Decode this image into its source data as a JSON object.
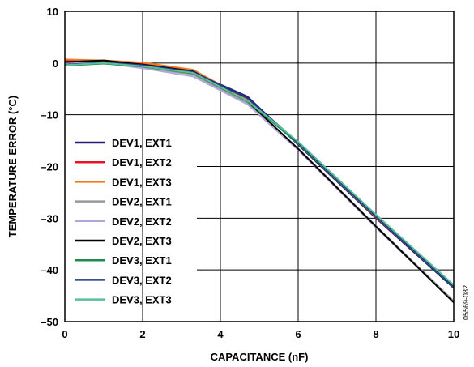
{
  "chart_data": {
    "type": "line",
    "title": "",
    "xlabel": "CAPACITANCE (nF)",
    "ylabel": "TEMPERATURE ERROR (°C)",
    "xlim": [
      0,
      10
    ],
    "ylim": [
      -50,
      10
    ],
    "x_ticks": [
      "0",
      "2",
      "4",
      "6",
      "8",
      "10"
    ],
    "y_ticks": [
      "10",
      "0",
      "–10",
      "–20",
      "–30",
      "–40",
      "–50"
    ],
    "grid": true,
    "legend_position": "left",
    "figure_id": "05569-082",
    "series": [
      {
        "name": "DEV1, EXT1",
        "color": "#2a1a78",
        "points": [
          [
            0,
            0.2
          ],
          [
            1,
            0.3
          ],
          [
            2,
            -0.2
          ],
          [
            3.3,
            -1.8
          ],
          [
            4.7,
            -6.5
          ],
          [
            6,
            -15.8
          ],
          [
            8,
            -30
          ],
          [
            10,
            -43.5
          ]
        ]
      },
      {
        "name": "DEV1, EXT2",
        "color": "#e8102a",
        "points": [
          [
            0,
            0.5
          ],
          [
            1,
            0.4
          ],
          [
            2,
            0.0
          ],
          [
            3.3,
            -1.4
          ],
          [
            4.7,
            -7.0
          ],
          [
            6,
            -15.5
          ],
          [
            8,
            -29.8
          ],
          [
            10,
            -43.2
          ]
        ]
      },
      {
        "name": "DEV1, EXT3",
        "color": "#f47a20",
        "points": [
          [
            0,
            0.7
          ],
          [
            1,
            0.5
          ],
          [
            2,
            0.1
          ],
          [
            3.3,
            -1.3
          ],
          [
            4.7,
            -7.2
          ],
          [
            6,
            -15.6
          ],
          [
            8,
            -29.7
          ],
          [
            10,
            -43.0
          ]
        ]
      },
      {
        "name": "DEV2, EXT1",
        "color": "#9a9a9a",
        "points": [
          [
            0,
            0.1
          ],
          [
            1,
            0.1
          ],
          [
            2,
            -0.8
          ],
          [
            3.3,
            -2.2
          ],
          [
            4.7,
            -7.8
          ],
          [
            6,
            -16.5
          ],
          [
            8,
            -31.5
          ],
          [
            10,
            -46.0
          ]
        ]
      },
      {
        "name": "DEV2, EXT2",
        "color": "#b3a6dc",
        "points": [
          [
            0,
            0.0
          ],
          [
            1,
            0.0
          ],
          [
            2,
            -1.0
          ],
          [
            3.3,
            -2.6
          ],
          [
            4.7,
            -8.0
          ],
          [
            6,
            -16.8
          ],
          [
            8,
            -31.8
          ],
          [
            10,
            -46.2
          ]
        ]
      },
      {
        "name": "DEV2, EXT3",
        "color": "#000000",
        "points": [
          [
            0,
            0.2
          ],
          [
            1,
            0.5
          ],
          [
            2,
            -0.3
          ],
          [
            3.3,
            -1.6
          ],
          [
            4.7,
            -7.4
          ],
          [
            6,
            -16.6
          ],
          [
            8,
            -31.6
          ],
          [
            10,
            -46.3
          ]
        ]
      },
      {
        "name": "DEV3, EXT1",
        "color": "#1f8a4c",
        "points": [
          [
            0,
            -0.5
          ],
          [
            1,
            -0.1
          ],
          [
            2,
            -0.7
          ],
          [
            3.3,
            -2.0
          ],
          [
            4.7,
            -7.4
          ],
          [
            6,
            -15.6
          ],
          [
            8,
            -29.7
          ],
          [
            10,
            -43.3
          ]
        ]
      },
      {
        "name": "DEV3, EXT2",
        "color": "#1c3a8a",
        "points": [
          [
            0,
            -0.3
          ],
          [
            1,
            0.1
          ],
          [
            2,
            -0.4
          ],
          [
            3.3,
            -1.7
          ],
          [
            4.7,
            -6.8
          ],
          [
            6,
            -15.4
          ],
          [
            8,
            -29.6
          ],
          [
            10,
            -43.2
          ]
        ]
      },
      {
        "name": "DEV3, EXT3",
        "color": "#5cbf9a",
        "points": [
          [
            0,
            -0.4
          ],
          [
            1,
            0.0
          ],
          [
            2,
            -0.6
          ],
          [
            3.3,
            -1.9
          ],
          [
            4.7,
            -7.3
          ],
          [
            6,
            -15.2
          ],
          [
            8,
            -29.3
          ],
          [
            10,
            -42.9
          ]
        ]
      }
    ]
  }
}
